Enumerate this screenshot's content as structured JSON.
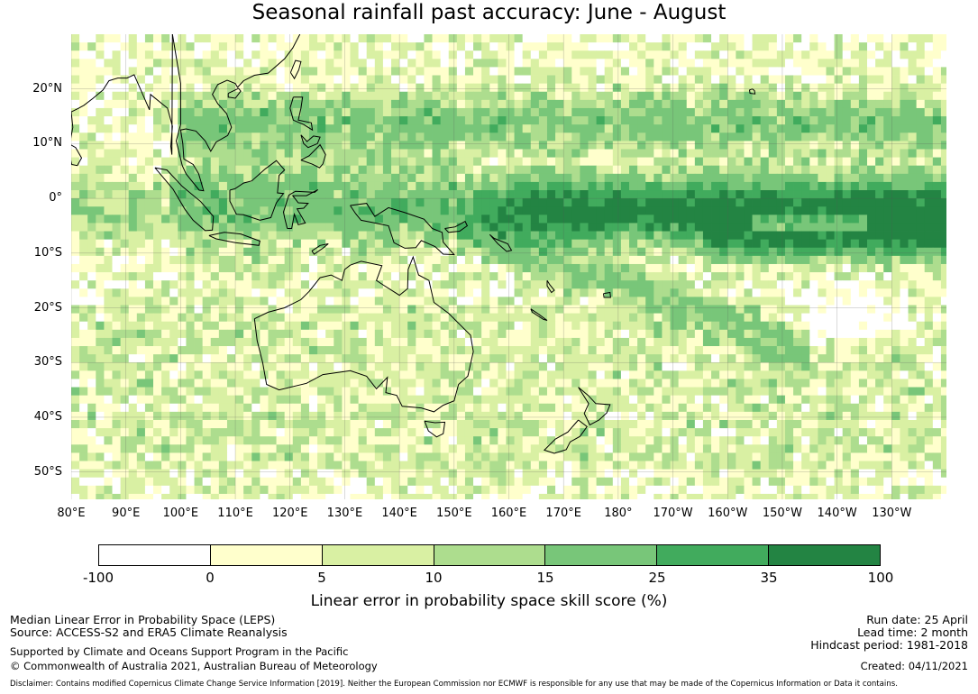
{
  "title": "Seasonal rainfall past accuracy: June - August",
  "map": {
    "lat_labels": [
      "20°N",
      "10°N",
      "0°",
      "10°S",
      "20°S",
      "30°S",
      "40°S",
      "50°S"
    ],
    "lat_values": [
      20,
      10,
      0,
      -10,
      -20,
      -30,
      -40,
      -50
    ],
    "lon_labels": [
      "80°E",
      "90°E",
      "100°E",
      "110°E",
      "120°E",
      "130°E",
      "140°E",
      "150°E",
      "160°E",
      "170°E",
      "180°",
      "170°W",
      "160°W",
      "150°W",
      "140°W",
      "130°W"
    ],
    "lon_values": [
      80,
      90,
      100,
      110,
      120,
      130,
      140,
      150,
      160,
      170,
      180,
      190,
      200,
      210,
      220,
      230
    ],
    "extent": {
      "lon_min": 80,
      "lon_max": 240,
      "lat_min": -55,
      "lat_max": 30
    },
    "grid_lines": true,
    "coastline_color": "#000000"
  },
  "colorbar": {
    "ticks": [
      "-100",
      "0",
      "5",
      "10",
      "15",
      "25",
      "35",
      "100"
    ],
    "colors": [
      "#ffffff",
      "#ffffcc",
      "#d9f0a3",
      "#addd8e",
      "#78c679",
      "#41ab5d",
      "#238443"
    ],
    "label": "Linear error in probability space skill score (%)"
  },
  "footer": {
    "left_line1": "Median Linear Error in Probability Space (LEPS)",
    "left_line2": "Source: ACCESS-S2 and ERA5 Climate Reanalysis",
    "left_line3": "Supported by Climate and Oceans Support Program in the Pacific",
    "left_line4": "© Commonwealth of Australia 2021, Australian Bureau of Meteorology",
    "right_line1": "Run date: 25 April",
    "right_line2": "Lead time: 2 month",
    "right_line3": "Hindcast period: 1981-2018",
    "right_line4": "Created: 04/11/2021",
    "disclaimer": "Disclaimer: Contains modified Copernicus Climate Change Service Information [2019]. Neither the European Commission nor ECMWF is responsible for any use that may be made of the Copernicus Information or Data it contains."
  }
}
